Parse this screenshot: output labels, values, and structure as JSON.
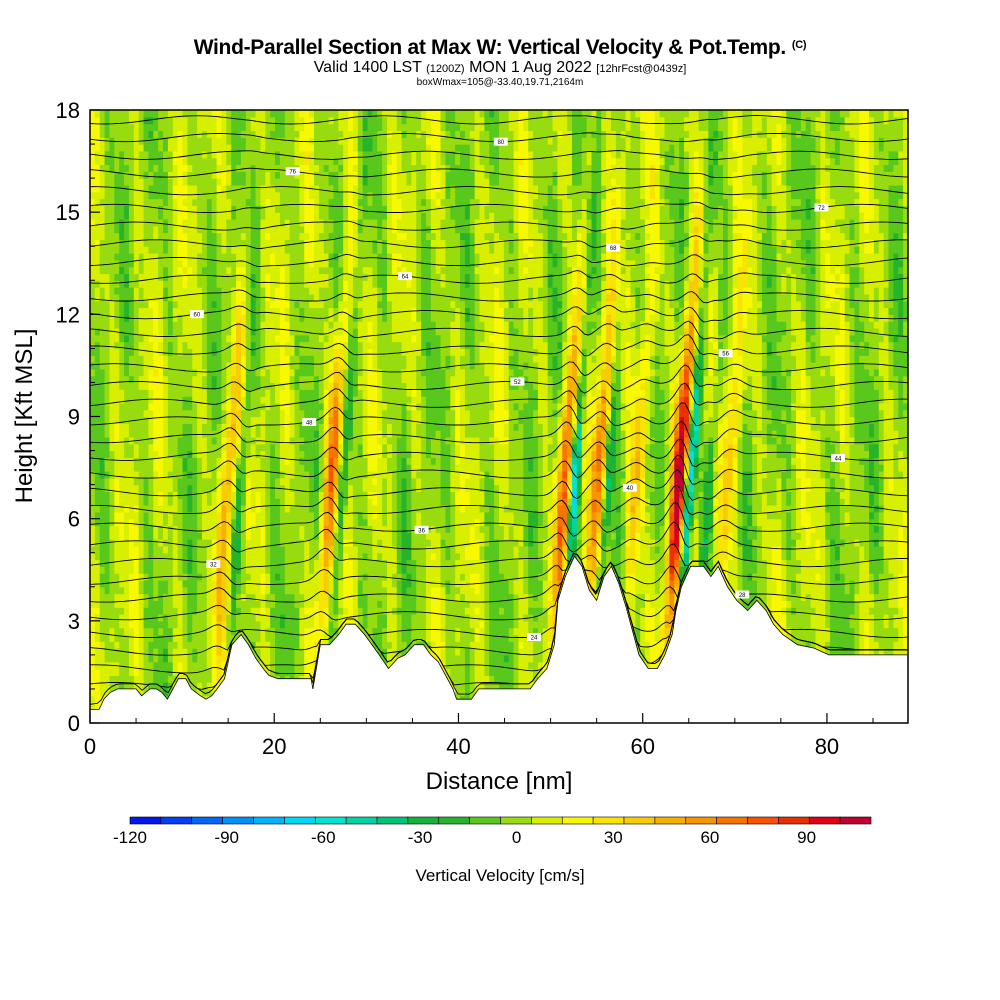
{
  "header": {
    "title": "Wind-Parallel Section at Max W: Vertical Velocity & Pot.Temp.",
    "title_unit": "(C)",
    "valid_prefix": "Valid 1400 LST",
    "valid_z": "(1200Z)",
    "valid_date": "MON 1 Aug 2022",
    "forecast": "[12hrFcst@0439z]",
    "box_info": "boxWmax=105@-33.40,19.71,2164m"
  },
  "chart_data": {
    "type": "heatmap",
    "xlabel": "Distance [nm]",
    "ylabel": "Height [Kft MSL]",
    "xlim": [
      0,
      88.8
    ],
    "ylim": [
      0,
      18
    ],
    "x_ticks": [
      "0",
      "20",
      "40",
      "60",
      "80"
    ],
    "x_tick_values": [
      0,
      20,
      40,
      60,
      80
    ],
    "y_ticks": [
      "0",
      "3",
      "6",
      "9",
      "12",
      "15",
      "18"
    ],
    "y_tick_values": [
      0,
      3,
      6,
      9,
      12,
      15,
      18
    ],
    "colorbar": {
      "title": "Vertical Velocity [cm/s]",
      "range": [
        -120,
        110
      ],
      "tick_labels": [
        "-120",
        "-90",
        "-60",
        "-30",
        "0",
        "30",
        "60",
        "90"
      ],
      "tick_values": [
        -120,
        -90,
        -60,
        -30,
        0,
        30,
        60,
        90
      ],
      "colors": [
        "#0018e8",
        "#0040f0",
        "#0068f4",
        "#0090f8",
        "#00b4fc",
        "#00d8f8",
        "#00e4d0",
        "#00d4a4",
        "#00c478",
        "#14b43c",
        "#28b428",
        "#58c81c",
        "#98dc10",
        "#d8f000",
        "#f8f800",
        "#f8e400",
        "#f8cc00",
        "#f8b000",
        "#f89400",
        "#f87400",
        "#f85400",
        "#e83000",
        "#e00018",
        "#c00030"
      ]
    },
    "background_w": 2,
    "terrain_kft": [
      [
        0,
        0.4
      ],
      [
        1,
        0.4
      ],
      [
        1.5,
        0.7
      ],
      [
        2.2,
        0.9
      ],
      [
        3,
        1.0
      ],
      [
        4,
        1.0
      ],
      [
        5,
        1.0
      ],
      [
        5.6,
        0.8
      ],
      [
        6.5,
        1.0
      ],
      [
        7.2,
        1.0
      ],
      [
        7.8,
        0.9
      ],
      [
        8.4,
        0.7
      ],
      [
        9,
        1.0
      ],
      [
        9.6,
        1.3
      ],
      [
        10.4,
        1.3
      ],
      [
        11,
        1.0
      ],
      [
        11.5,
        0.9
      ],
      [
        12,
        0.8
      ],
      [
        12.6,
        0.7
      ],
      [
        13.2,
        0.8
      ],
      [
        13.8,
        1.0
      ],
      [
        14.6,
        1.3
      ],
      [
        15.4,
        2.3
      ],
      [
        16.4,
        2.6
      ],
      [
        17.2,
        2.3
      ],
      [
        18,
        1.9
      ],
      [
        18.8,
        1.6
      ],
      [
        19.4,
        1.4
      ],
      [
        20.4,
        1.3
      ],
      [
        24,
        1.3
      ],
      [
        24.2,
        1.0
      ],
      [
        25,
        2.3
      ],
      [
        26,
        2.3
      ],
      [
        27,
        2.6
      ],
      [
        27.8,
        2.9
      ],
      [
        28.8,
        2.9
      ],
      [
        29.8,
        2.6
      ],
      [
        30.6,
        2.3
      ],
      [
        31.4,
        2.0
      ],
      [
        32.4,
        1.6
      ],
      [
        33.4,
        1.9
      ],
      [
        34.2,
        2.0
      ],
      [
        35.2,
        2.3
      ],
      [
        36.2,
        2.3
      ],
      [
        37,
        2.0
      ],
      [
        37.8,
        1.8
      ],
      [
        38.8,
        1.3
      ],
      [
        39.4,
        1.0
      ],
      [
        39.8,
        0.7
      ],
      [
        41.4,
        0.7
      ],
      [
        42.2,
        1.0
      ],
      [
        43,
        1.0
      ],
      [
        44.6,
        1.0
      ],
      [
        46,
        1.0
      ],
      [
        47.8,
        1.0
      ],
      [
        48.6,
        1.3
      ],
      [
        49.6,
        1.6
      ],
      [
        50.4,
        2.3
      ],
      [
        50.8,
        3.6
      ],
      [
        51.6,
        4.3
      ],
      [
        52.6,
        4.9
      ],
      [
        53.4,
        4.6
      ],
      [
        54.2,
        3.9
      ],
      [
        55,
        3.6
      ],
      [
        55.8,
        4.3
      ],
      [
        56.6,
        4.6
      ],
      [
        57.4,
        4.1
      ],
      [
        58.2,
        3.4
      ],
      [
        59,
        2.6
      ],
      [
        59.6,
        2.0
      ],
      [
        60.6,
        1.6
      ],
      [
        61.6,
        1.6
      ],
      [
        62.4,
        2.0
      ],
      [
        63.2,
        2.6
      ],
      [
        63.6,
        3.3
      ],
      [
        64.2,
        4.0
      ],
      [
        65.2,
        4.6
      ],
      [
        66.6,
        4.6
      ],
      [
        67.4,
        4.3
      ],
      [
        68.2,
        4.6
      ],
      [
        69.2,
        4.0
      ],
      [
        70.2,
        3.6
      ],
      [
        71.4,
        3.3
      ],
      [
        72.4,
        3.6
      ],
      [
        73.4,
        3.3
      ],
      [
        74.2,
        2.9
      ],
      [
        75.2,
        2.6
      ],
      [
        76.8,
        2.3
      ],
      [
        78.6,
        2.2
      ],
      [
        80.2,
        2.0
      ],
      [
        83,
        2.0
      ],
      [
        86,
        2.0
      ],
      [
        88.8,
        2.0
      ]
    ],
    "updrafts": [
      {
        "x": 14.2,
        "w": 45
      },
      {
        "x": 25.4,
        "w": 60
      },
      {
        "x": 50.8,
        "w": 70
      },
      {
        "x": 54.4,
        "w": 55
      },
      {
        "x": 58.5,
        "w": 40
      },
      {
        "x": 63.2,
        "w": 105
      },
      {
        "x": 68.5,
        "w": 35
      }
    ],
    "downdrafts": [
      {
        "x": 15.6,
        "w": -35
      },
      {
        "x": 26.6,
        "w": -35
      },
      {
        "x": 51.8,
        "w": -75
      },
      {
        "x": 55.4,
        "w": -45
      },
      {
        "x": 64.3,
        "w": -90
      },
      {
        "x": 66.5,
        "w": -30
      }
    ],
    "isentropes_c": [
      16,
      18,
      20,
      22,
      24,
      26,
      28,
      30,
      32,
      34,
      36,
      38,
      40,
      42,
      44,
      46,
      48,
      50,
      52,
      54,
      56,
      58,
      60,
      62,
      64,
      66,
      68,
      70,
      72,
      74,
      76,
      78,
      80,
      82
    ]
  }
}
